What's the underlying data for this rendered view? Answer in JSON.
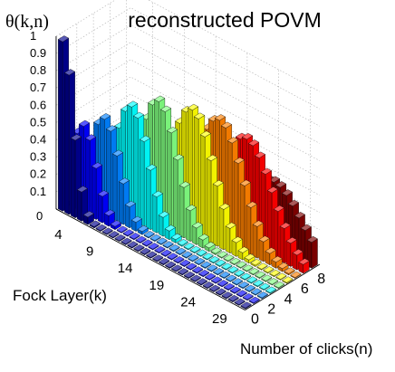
{
  "chart_data": {
    "type": "bar3d",
    "title": "reconstructed POVM",
    "zlabel": "θ(k,n)",
    "xlabel": "Fock Layer(k)",
    "ylabel": "Number of clicks(n)",
    "z_ticks": [
      "0",
      "0.1",
      "0.2",
      "0.3",
      "0.4",
      "0.5",
      "0.6",
      "0.7",
      "0.8",
      "0.9",
      "1"
    ],
    "k_ticks": [
      "4",
      "9",
      "14",
      "19",
      "24",
      "29"
    ],
    "n_ticks": [
      "0",
      "2",
      "4",
      "6",
      "8"
    ],
    "zlim": [
      0,
      1
    ],
    "grid": true,
    "colormap": [
      "#00008f",
      "#0000ff",
      "#0080ff",
      "#00ffff",
      "#80ff80",
      "#ffff00",
      "#ff8000",
      "#ff0000",
      "#800000"
    ],
    "fock_layers": [
      1,
      2,
      3,
      4,
      5,
      6,
      7,
      8,
      9,
      10,
      11,
      12,
      13,
      14,
      15,
      16,
      17,
      18,
      19,
      20,
      21,
      22,
      23,
      24,
      25,
      26,
      27,
      28,
      29,
      30
    ],
    "click_counts": [
      0,
      1,
      2,
      3,
      4,
      5,
      6,
      7,
      8
    ],
    "peaks": [
      {
        "n": 0,
        "k": 1,
        "value": 0.98
      },
      {
        "n": 1,
        "k": 3,
        "value": 0.5
      },
      {
        "n": 2,
        "k": 5,
        "value": 0.55
      },
      {
        "n": 3,
        "k": 8,
        "value": 0.65
      },
      {
        "n": 4,
        "k": 11,
        "value": 0.71
      },
      {
        "n": 5,
        "k": 15,
        "value": 0.71
      },
      {
        "n": 6,
        "k": 18,
        "value": 0.68
      },
      {
        "n": 7,
        "k": 21,
        "value": 0.6
      },
      {
        "n": 8,
        "k": 24,
        "value": 0.38
      }
    ]
  }
}
